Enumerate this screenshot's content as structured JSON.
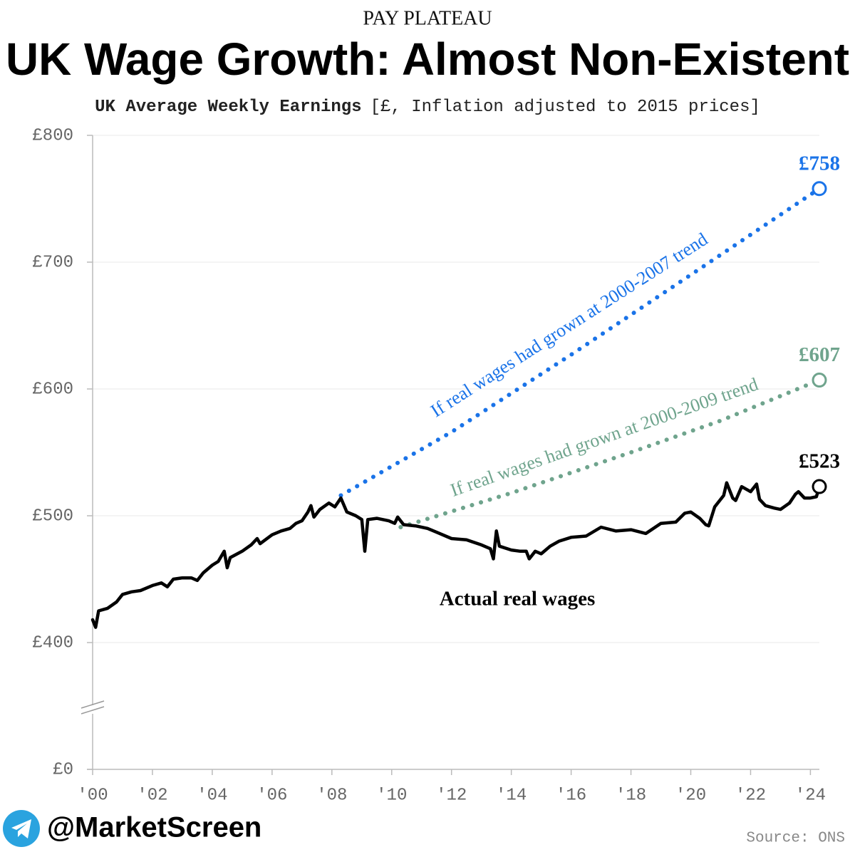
{
  "chart_data": {
    "type": "line",
    "kicker": "PAY PLATEAU",
    "title": "UK Wage Growth: Almost Non-Existent",
    "subtitle_bold": "UK Average Weekly Earnings",
    "subtitle": "[£, Inflation adjusted to 2015 prices]",
    "handle": "@MarketScreen",
    "source": "Source: ONS",
    "xlim": [
      2000,
      2024.3
    ],
    "xticks": [
      {
        "value": 2000,
        "label": "'00"
      },
      {
        "value": 2002,
        "label": "'02"
      },
      {
        "value": 2004,
        "label": "'04"
      },
      {
        "value": 2006,
        "label": "'06"
      },
      {
        "value": 2008,
        "label": "'08"
      },
      {
        "value": 2010,
        "label": "'10"
      },
      {
        "value": 2012,
        "label": "'12"
      },
      {
        "value": 2014,
        "label": "'14"
      },
      {
        "value": 2016,
        "label": "'16"
      },
      {
        "value": 2018,
        "label": "'18"
      },
      {
        "value": 2020,
        "label": "'20"
      },
      {
        "value": 2022,
        "label": "'22"
      },
      {
        "value": 2024,
        "label": "'24"
      }
    ],
    "ylim": [
      0,
      800
    ],
    "yticks": [
      {
        "value": 0,
        "label": "£0"
      },
      {
        "value": 400,
        "label": "£400"
      },
      {
        "value": 500,
        "label": "£500"
      },
      {
        "value": 600,
        "label": "£600"
      },
      {
        "value": 700,
        "label": "£700"
      },
      {
        "value": 800,
        "label": "£800"
      }
    ],
    "axis_break": true,
    "grid": true,
    "series": [
      {
        "name": "Actual real wages",
        "color": "#000000",
        "dotted": false,
        "x": [
          2000.0,
          2000.1,
          2000.2,
          2000.5,
          2000.8,
          2001.0,
          2001.3,
          2001.6,
          2002.0,
          2002.3,
          2002.5,
          2002.7,
          2003.0,
          2003.3,
          2003.5,
          2003.7,
          2004.0,
          2004.2,
          2004.4,
          2004.5,
          2004.6,
          2005.0,
          2005.3,
          2005.5,
          2005.6,
          2006.0,
          2006.3,
          2006.6,
          2006.8,
          2007.0,
          2007.2,
          2007.3,
          2007.4,
          2007.6,
          2007.9,
          2008.1,
          2008.3,
          2008.5,
          2008.8,
          2009.0,
          2009.1,
          2009.2,
          2009.5,
          2009.9,
          2010.1,
          2010.2,
          2010.4,
          2010.8,
          2011.2,
          2011.5,
          2012.0,
          2012.5,
          2013.0,
          2013.3,
          2013.4,
          2013.5,
          2013.6,
          2014.0,
          2014.3,
          2014.5,
          2014.6,
          2014.8,
          2015.0,
          2015.3,
          2015.6,
          2016.0,
          2016.5,
          2017.0,
          2017.5,
          2018.0,
          2018.5,
          2019.0,
          2019.5,
          2019.8,
          2020.0,
          2020.3,
          2020.5,
          2020.6,
          2020.8,
          2021.1,
          2021.2,
          2021.4,
          2021.5,
          2021.7,
          2022.0,
          2022.2,
          2022.3,
          2022.5,
          2022.8,
          2023.0,
          2023.3,
          2023.5,
          2023.6,
          2023.8,
          2024.0,
          2024.2,
          2024.3
        ],
        "values": [
          418,
          412,
          425,
          427,
          432,
          438,
          440,
          441,
          445,
          447,
          444,
          450,
          451,
          451,
          449,
          455,
          461,
          464,
          472,
          459,
          467,
          472,
          477,
          482,
          478,
          485,
          488,
          490,
          494,
          496,
          503,
          508,
          499,
          505,
          510,
          507,
          514,
          503,
          500,
          497,
          472,
          497,
          498,
          496,
          494,
          499,
          493,
          492,
          490,
          487,
          482,
          481,
          477,
          474,
          466,
          488,
          476,
          473,
          472,
          472,
          466,
          472,
          470,
          476,
          480,
          483,
          484,
          491,
          488,
          489,
          486,
          494,
          495,
          502,
          503,
          498,
          493,
          492,
          507,
          516,
          526,
          514,
          512,
          523,
          519,
          525,
          513,
          508,
          506,
          505,
          510,
          517,
          519,
          514,
          514,
          515,
          523
        ],
        "end_label": "£523"
      },
      {
        "name": "If real wages had grown at 2000-2007 trend",
        "color": "#1a73e8",
        "dotted": true,
        "x": [
          2008.3,
          2012,
          2016,
          2020,
          2024.3
        ],
        "values": [
          516,
          566,
          627,
          690,
          758
        ],
        "end_label": "£758"
      },
      {
        "name": "If real wages had grown at 2000-2009 trend",
        "color": "#6fa48d",
        "dotted": true,
        "x": [
          2010.3,
          2014,
          2018,
          2021,
          2024.3
        ],
        "values": [
          491,
          518,
          550,
          575,
          607
        ],
        "end_label": "£607"
      }
    ]
  }
}
